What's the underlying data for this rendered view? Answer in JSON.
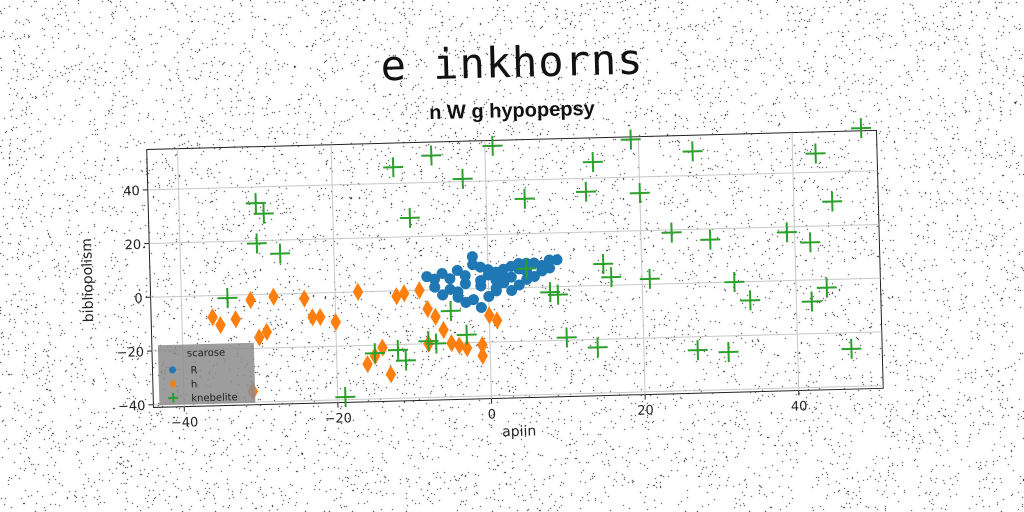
{
  "chart_data": {
    "type": "scatter",
    "title": "e inkhorns",
    "subtitle": "n W g hypopepsy",
    "xlabel": "apiin",
    "ylabel": "bibliopolism",
    "xlim": [
      -44,
      51
    ],
    "ylim": [
      -41,
      55
    ],
    "xticks": [
      -40,
      -20,
      0,
      20,
      40
    ],
    "yticks": [
      -40,
      -20,
      0,
      20,
      40
    ],
    "grid": true,
    "legend": {
      "title": "scarose",
      "placement": "lower-left"
    },
    "series": [
      {
        "name": "R",
        "marker": "circle",
        "color": "#1f77b4",
        "points": [
          [
            -8,
            5
          ],
          [
            -7,
            4
          ],
          [
            -6,
            6
          ],
          [
            -5,
            4
          ],
          [
            -4,
            7
          ],
          [
            -3,
            5
          ],
          [
            -2,
            9
          ],
          [
            -1,
            8
          ],
          [
            0,
            5
          ],
          [
            1,
            6
          ],
          [
            2,
            7
          ],
          [
            3,
            4
          ],
          [
            4,
            7
          ],
          [
            5,
            6
          ],
          [
            6,
            9
          ],
          [
            7,
            8
          ],
          [
            8,
            10
          ],
          [
            9,
            10
          ],
          [
            7,
            6
          ],
          [
            -5,
            0
          ],
          [
            -4,
            -3
          ],
          [
            -3,
            -5
          ],
          [
            -2,
            -4
          ],
          [
            -1,
            -7
          ],
          [
            0,
            -3
          ],
          [
            1,
            -1
          ],
          [
            2,
            2
          ],
          [
            3,
            -1
          ],
          [
            4,
            1
          ],
          [
            -3,
            2
          ],
          [
            -1,
            1
          ],
          [
            1,
            3
          ],
          [
            5,
            3
          ],
          [
            6,
            4
          ],
          [
            -6,
            -2
          ],
          [
            -7,
            1
          ],
          [
            -2,
            12
          ],
          [
            0,
            7
          ],
          [
            2,
            4
          ],
          [
            4,
            9
          ],
          [
            -1,
            3
          ],
          [
            3,
            8
          ],
          [
            8,
            7
          ],
          [
            5,
            9
          ],
          [
            -4,
            -1
          ],
          [
            1,
            0
          ]
        ]
      },
      {
        "name": "h",
        "marker": "diamond",
        "color": "#ff7f0e",
        "points": [
          [
            -36,
            -8
          ],
          [
            -35,
            -11
          ],
          [
            -33,
            -9
          ],
          [
            -31,
            -2
          ],
          [
            -30,
            -16
          ],
          [
            -29,
            -14
          ],
          [
            -28,
            -1
          ],
          [
            -31,
            -36
          ],
          [
            -24,
            -2
          ],
          [
            -23,
            -9
          ],
          [
            -22,
            -9
          ],
          [
            -20,
            -11
          ],
          [
            -17,
            0
          ],
          [
            -16,
            -27
          ],
          [
            -15,
            -24
          ],
          [
            -14,
            -21
          ],
          [
            -13,
            -31
          ],
          [
            -12,
            -2
          ],
          [
            -11,
            -1
          ],
          [
            -9,
            0
          ],
          [
            -8,
            -7
          ],
          [
            -7,
            -10
          ],
          [
            -6,
            -15
          ],
          [
            -5,
            -20
          ],
          [
            -4,
            -21
          ],
          [
            -3,
            -22
          ],
          [
            -1,
            -21
          ],
          [
            -1,
            -25
          ],
          [
            0,
            -10
          ],
          [
            1,
            -12
          ],
          [
            -8,
            -20
          ]
        ]
      },
      {
        "name": "knebelite",
        "marker": "plus",
        "color": "#2ca02c",
        "points": [
          [
            -30,
            34
          ],
          [
            -29,
            30
          ],
          [
            -30,
            19
          ],
          [
            -27,
            15
          ],
          [
            -34,
            -1
          ],
          [
            -19,
            -39
          ],
          [
            -12,
            46
          ],
          [
            -10,
            27
          ],
          [
            -7,
            50
          ],
          [
            -3,
            41
          ],
          [
            1,
            53
          ],
          [
            5,
            33
          ],
          [
            9,
            -3
          ],
          [
            10,
            -19
          ],
          [
            13,
            35
          ],
          [
            14,
            -23
          ],
          [
            14,
            46
          ],
          [
            15,
            8
          ],
          [
            16,
            3
          ],
          [
            19,
            54
          ],
          [
            20,
            34
          ],
          [
            21,
            2
          ],
          [
            24,
            19
          ],
          [
            27,
            49
          ],
          [
            27,
            -25
          ],
          [
            29,
            16
          ],
          [
            31,
            -26
          ],
          [
            32,
            0
          ],
          [
            34,
            -7
          ],
          [
            39,
            18
          ],
          [
            43,
            47
          ],
          [
            42,
            -8
          ],
          [
            42,
            14
          ],
          [
            44,
            -3
          ],
          [
            45,
            29
          ],
          [
            47,
            -26
          ],
          [
            49,
            56
          ],
          [
            -8,
            -19
          ],
          [
            -7,
            -20
          ],
          [
            -5,
            -8
          ],
          [
            -3,
            -17
          ],
          [
            -12,
            -22
          ],
          [
            -11,
            -26
          ],
          [
            5,
            7
          ],
          [
            8,
            -2
          ],
          [
            -15,
            -23
          ]
        ]
      }
    ]
  }
}
